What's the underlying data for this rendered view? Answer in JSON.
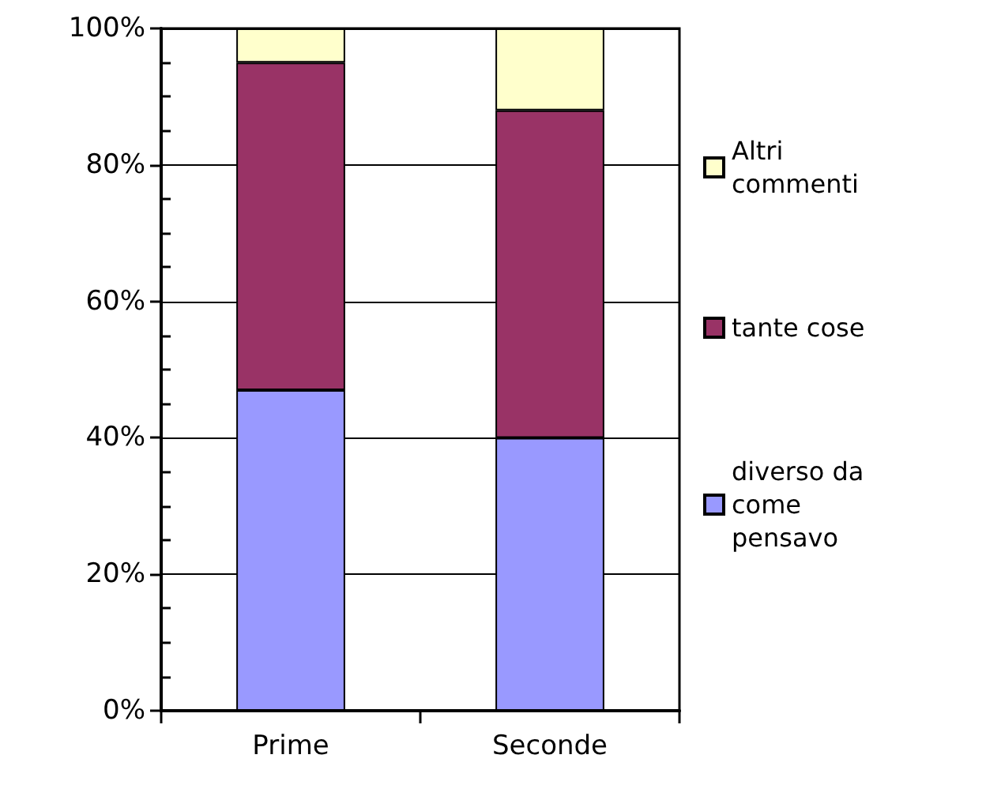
{
  "chart_data": {
    "type": "bar",
    "stacked": true,
    "categories": [
      "Prime",
      "Seconde"
    ],
    "series": [
      {
        "name": "diverso da come pensavo",
        "color": "#9999ff",
        "values": [
          47,
          40
        ]
      },
      {
        "name": "tante cose",
        "color": "#993366",
        "values": [
          48,
          48
        ]
      },
      {
        "name": "Altri commenti",
        "color": "#ffffcc",
        "values": [
          5,
          12
        ]
      }
    ],
    "ylim": [
      0,
      100
    ],
    "yticks": [
      {
        "value": 0,
        "label": "0%"
      },
      {
        "value": 5,
        "label": null
      },
      {
        "value": 10,
        "label": null
      },
      {
        "value": 15,
        "label": null
      },
      {
        "value": 20,
        "label": "20%"
      },
      {
        "value": 25,
        "label": null
      },
      {
        "value": 30,
        "label": null
      },
      {
        "value": 35,
        "label": null
      },
      {
        "value": 40,
        "label": "40%"
      },
      {
        "value": 45,
        "label": null
      },
      {
        "value": 50,
        "label": null
      },
      {
        "value": 55,
        "label": null
      },
      {
        "value": 60,
        "label": "60%"
      },
      {
        "value": 65,
        "label": null
      },
      {
        "value": 70,
        "label": null
      },
      {
        "value": 75,
        "label": null
      },
      {
        "value": 80,
        "label": "80%"
      },
      {
        "value": 85,
        "label": null
      },
      {
        "value": 90,
        "label": null
      },
      {
        "value": 95,
        "label": null
      },
      {
        "value": 100,
        "label": "100%"
      }
    ],
    "grid": "y",
    "legend": "right"
  }
}
